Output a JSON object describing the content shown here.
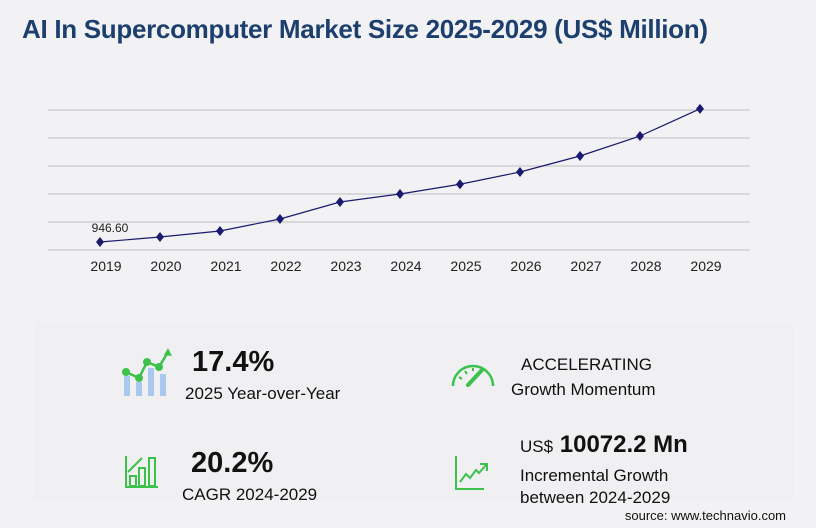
{
  "title": "AI In Supercomputer Market Size 2025-2029 (US$ Million)",
  "chart_data": {
    "type": "line",
    "title": "AI In Supercomputer Market Size 2025-2029 (US$ Million)",
    "categories": [
      "2019",
      "2020",
      "2021",
      "2022",
      "2023",
      "2024",
      "2025",
      "2026",
      "2027",
      "2028",
      "2029"
    ],
    "values": [
      946.6,
      1538,
      2248,
      3667,
      5678,
      6626,
      7779,
      9228,
      11120,
      13486,
      16698
    ],
    "data_labels": {
      "2019": "946.60"
    },
    "ylim": [
      0,
      16562
    ],
    "grid": true,
    "color": "#1a1a6e"
  },
  "stats": {
    "yoy_value": "17.4%",
    "yoy_label": "2025 Year-over-Year",
    "momentum_value": "ACCELERATING",
    "momentum_label": "Growth Momentum",
    "cagr_value": "20.2%",
    "cagr_label": "CAGR 2024-2029",
    "incr_prefix": "US$",
    "incr_value": "10072.2 Mn",
    "incr_label1": "Incremental Growth",
    "incr_label2": "between 2024-2029"
  },
  "source": "source: www.technavio.com"
}
